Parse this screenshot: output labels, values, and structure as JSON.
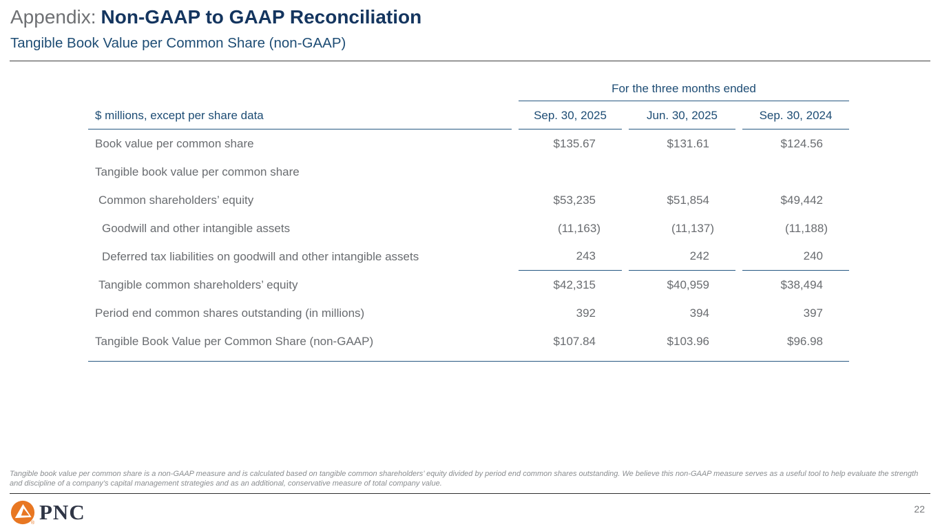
{
  "slide": {
    "title_prefix": "Appendix:",
    "title_main": "Non-GAAP to GAAP Reconciliation",
    "subtitle": "Tangible Book Value per Common Share (non-GAAP)",
    "footnote": "Tangible book value per common share is a non-GAAP measure and is calculated based on tangible common shareholders’ equity divided by period end common shares outstanding. We believe this non-GAAP measure serves as a useful tool to help evaluate the strength and discipline of a company’s capital management strategies and as an additional, conservative measure of total company value.",
    "logo_text": "PNC",
    "logo_registered_mark": "®",
    "page_number": "22"
  },
  "table": {
    "col_group_header": "For the three months ended",
    "row_header_label": "$ millions, except per share data",
    "columns": [
      "Sep. 30, 2025",
      "Jun. 30, 2025",
      "Sep. 30, 2024"
    ],
    "rows": [
      {
        "label": "Book value per common share",
        "indent": 0,
        "values": [
          "$135.67",
          "$131.61",
          "$124.56"
        ],
        "subtotal_rule": false
      },
      {
        "label": "Tangible book value per common share",
        "indent": 0,
        "values": [
          "",
          "",
          ""
        ],
        "subtotal_rule": false
      },
      {
        "label": "Common shareholders’ equity",
        "indent": 1,
        "values": [
          "$53,235",
          "$51,854",
          "$49,442"
        ],
        "subtotal_rule": false
      },
      {
        "label": "Goodwill and other intangible assets",
        "indent": 2,
        "values": [
          "(11,163)",
          "(11,137)",
          "(11,188)"
        ],
        "subtotal_rule": false
      },
      {
        "label": "Deferred tax liabilities on goodwill and other intangible assets",
        "indent": 2,
        "values": [
          "243",
          "242",
          "240"
        ],
        "subtotal_rule": true
      },
      {
        "label": "Tangible common shareholders’ equity",
        "indent": 1,
        "values": [
          "$42,315",
          "$40,959",
          "$38,494"
        ],
        "subtotal_rule": false
      },
      {
        "label": "Period end common shares outstanding (in millions)",
        "indent": 0,
        "values": [
          "392",
          "394",
          "397"
        ],
        "subtotal_rule": false
      },
      {
        "label": "Tangible Book Value per Common Share (non-GAAP)",
        "indent": 0,
        "values": [
          "$107.84",
          "$103.96",
          "$96.98"
        ],
        "subtotal_rule": false
      }
    ]
  },
  "colors": {
    "navy": "#1d4c74",
    "title_navy": "#14355f",
    "line": "#255781",
    "text_gray": "#696c70",
    "footnote_gray": "#8a8d90",
    "prefix_gray": "#6e7073",
    "rule_dark": "#3c3c3c",
    "pnc_orange": "#e87722",
    "logo_navy": "#2f3545",
    "page_num_gray": "#77797c"
  }
}
